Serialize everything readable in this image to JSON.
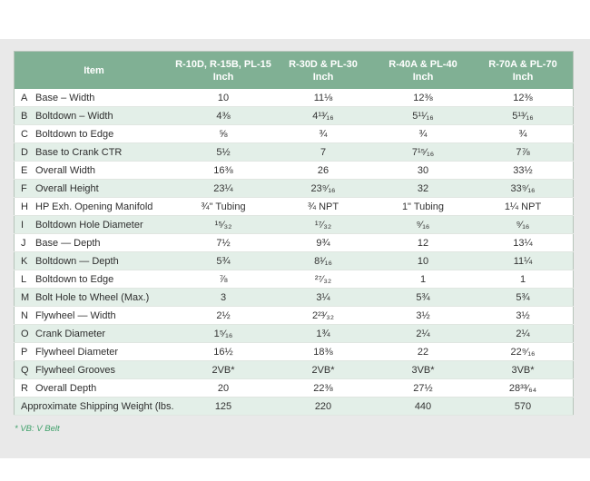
{
  "colors": {
    "header_green": "#80b094",
    "row_alt_green": "#e3efe8",
    "panel_gray": "#e9e9e9",
    "footnote_green": "#3fa06a"
  },
  "table": {
    "header": {
      "item_label": "Item",
      "columns": [
        {
          "model": "R-10D, R-15B, PL-15",
          "unit": "Inch"
        },
        {
          "model": "R-30D & PL-30",
          "unit": "Inch"
        },
        {
          "model": "R-40A & PL-40",
          "unit": "Inch"
        },
        {
          "model": "R-70A & PL-70",
          "unit": "Inch"
        }
      ]
    },
    "rows": [
      {
        "letter": "A",
        "item": "Base – Width",
        "values": [
          "10",
          "11⅛",
          "12⅜",
          "12⅜"
        ]
      },
      {
        "letter": "B",
        "item": "Boltdown – Width",
        "values": [
          "4⅜",
          "4¹³⁄₁₆",
          "5¹¹⁄₁₆",
          "5¹³⁄₁₆"
        ]
      },
      {
        "letter": "C",
        "item": "Boltdown to Edge",
        "values": [
          "⅝",
          "¾",
          "¾",
          "¾"
        ]
      },
      {
        "letter": "D",
        "item": "Base to Crank CTR",
        "values": [
          "5½",
          "7",
          "7¹⁵⁄₁₆",
          "7⅞"
        ]
      },
      {
        "letter": "E",
        "item": "Overall Width",
        "values": [
          "16⅜",
          "26",
          "30",
          "33½"
        ]
      },
      {
        "letter": "F",
        "item": "Overall Height",
        "values": [
          "23¼",
          "23⁹⁄₁₆",
          "32",
          "33⁹⁄₁₆"
        ]
      },
      {
        "letter": "H",
        "item": "HP Exh. Opening Manifold",
        "values": [
          "¾\" Tubing",
          "¾ NPT",
          "1\" Tubing",
          "1¼ NPT"
        ]
      },
      {
        "letter": "I",
        "item": "Boltdown Hole Diameter",
        "values": [
          "¹⁵⁄₃₂",
          "¹⁷⁄₃₂",
          "⁹⁄₁₆",
          "⁹⁄₁₆"
        ]
      },
      {
        "letter": "J",
        "item": "Base — Depth",
        "values": [
          "7½",
          "9¾",
          "12",
          "13¼"
        ]
      },
      {
        "letter": "K",
        "item": "Boltdown — Depth",
        "values": [
          "5¾",
          "8¹⁄₁₆",
          "10",
          "11¼"
        ]
      },
      {
        "letter": "L",
        "item": "Boltdown to Edge",
        "values": [
          "⅞",
          "²⁷⁄₃₂",
          "1",
          "1"
        ]
      },
      {
        "letter": "M",
        "item": "Bolt Hole to Wheel (Max.)",
        "values": [
          "3",
          "3¼",
          "5¾",
          "5¾"
        ]
      },
      {
        "letter": "N",
        "item": "Flywheel — Width",
        "values": [
          "2½",
          "2²³⁄₃₂",
          "3½",
          "3½"
        ]
      },
      {
        "letter": "O",
        "item": "Crank Diameter",
        "values": [
          "1⁵⁄₁₆",
          "1¾",
          "2¼",
          "2¼"
        ]
      },
      {
        "letter": "P",
        "item": "Flywheel Diameter",
        "values": [
          "16½",
          "18⅜",
          "22",
          "22⁹⁄₁₆"
        ]
      },
      {
        "letter": "Q",
        "item": "Flywheel Grooves",
        "values": [
          "2VB*",
          "2VB*",
          "3VB*",
          "3VB*"
        ]
      },
      {
        "letter": "R",
        "item": "Overall Depth",
        "values": [
          "20",
          "22⅜",
          "27½",
          "28³³⁄₆₄"
        ]
      }
    ],
    "footer_row": {
      "label": "Approximate Shipping Weight (lbs.)",
      "values": [
        "125",
        "220",
        "440",
        "570"
      ]
    },
    "footnote": "* VB: V Belt"
  }
}
